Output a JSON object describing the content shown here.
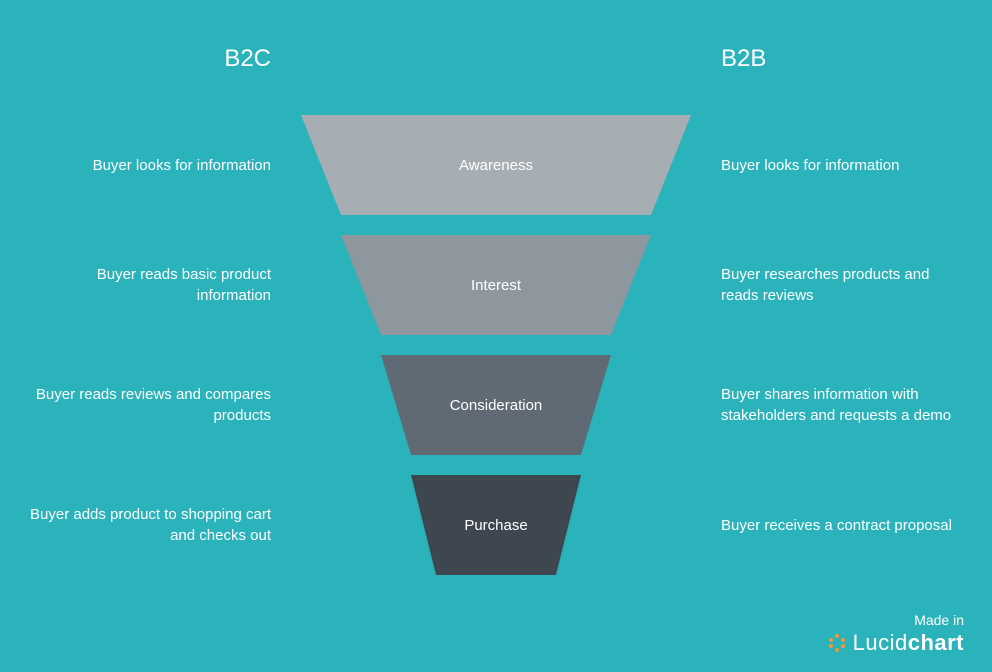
{
  "background_color": "#2ab3ba",
  "text_color": "#ffffff",
  "headers": {
    "left": "B2C",
    "right": "B2B"
  },
  "funnel": {
    "type": "funnel",
    "stages": [
      {
        "label": "Awareness",
        "color": "#a6aeb3",
        "top_width": 390,
        "bottom_width": 310,
        "b2c": "Buyer looks for information",
        "b2b": "Buyer looks for information"
      },
      {
        "label": "Interest",
        "color": "#8e979e",
        "top_width": 310,
        "bottom_width": 230,
        "b2c": "Buyer reads basic product information",
        "b2b": "Buyer researches products and reads reviews"
      },
      {
        "label": "Consideration",
        "color": "#5f6a74",
        "top_width": 230,
        "bottom_width": 170,
        "b2c": "Buyer reads reviews and compares products",
        "b2b": "Buyer shares information with stakeholders and requests a demo"
      },
      {
        "label": "Purchase",
        "color": "#3e4750",
        "top_width": 170,
        "bottom_width": 120,
        "b2c": "Buyer adds product to shopping cart and checks out",
        "b2b": "Buyer receives a contract proposal"
      }
    ],
    "stage_height": 100,
    "stage_gap": 20
  },
  "footer": {
    "made_in": "Made in",
    "brand_light": "Lucid",
    "brand_bold": "chart",
    "logo_color": "#f79433"
  }
}
